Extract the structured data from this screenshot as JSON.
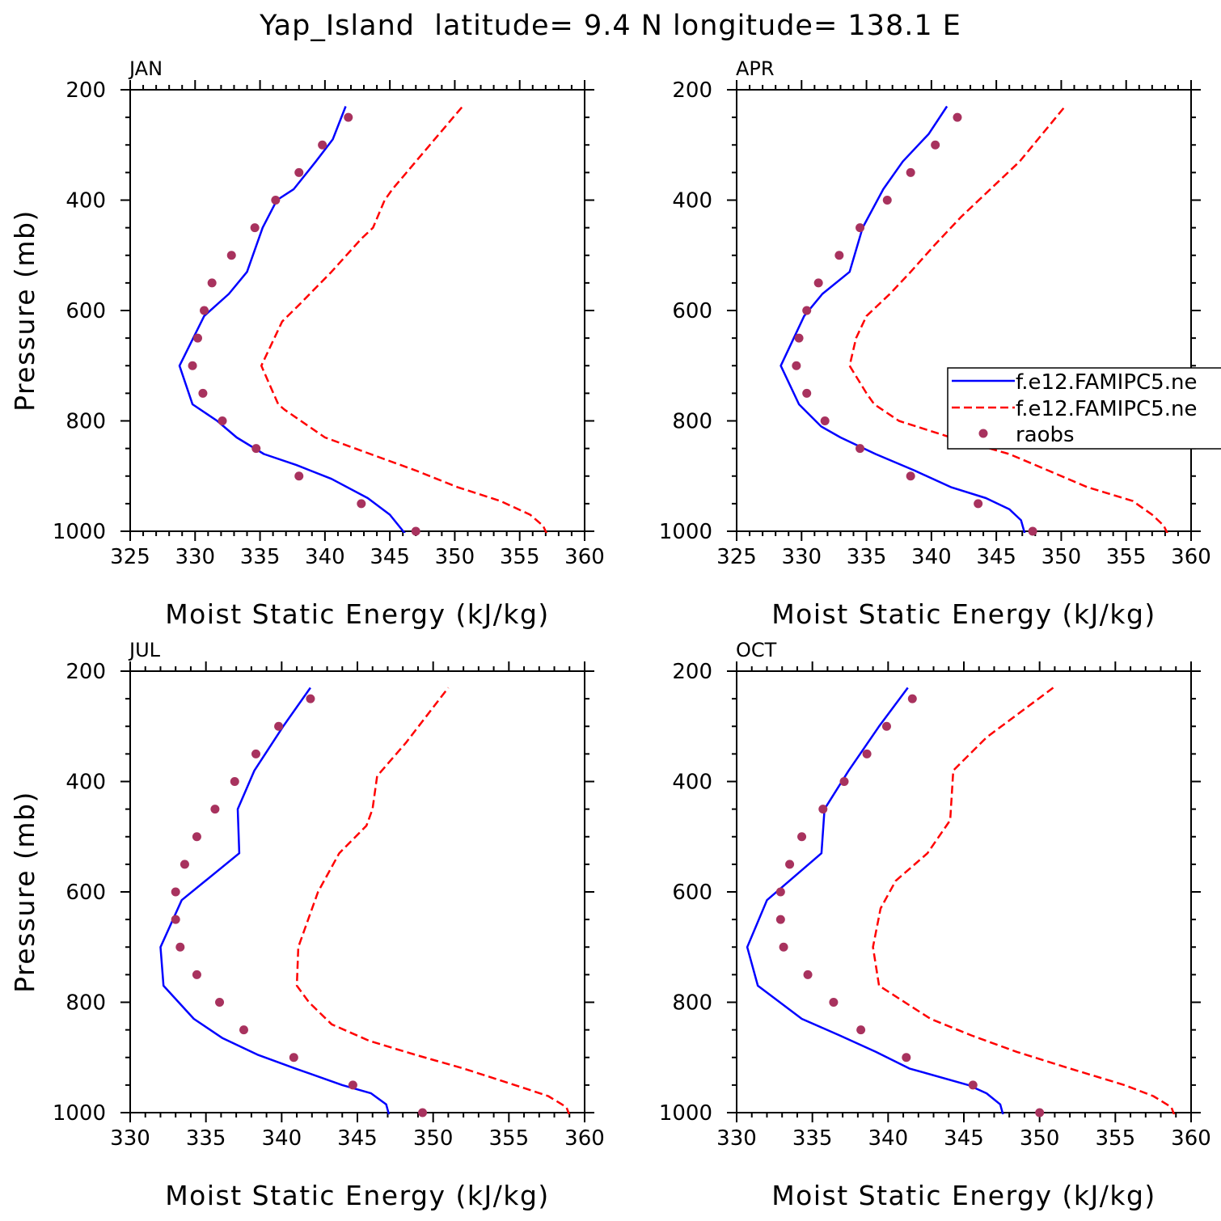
{
  "title": "Yap_Island  latitude= 9.4 N longitude= 138.1 E",
  "colors": {
    "series1": "#0000ff",
    "series2": "#ff0000",
    "series3": "#a8325e",
    "axis": "#000000"
  },
  "legend": {
    "entries": [
      "f.e12.FAMIPC5.ne",
      "f.e12.FAMIPC5.ne",
      "raobs"
    ],
    "panel": "APR",
    "placement": "right"
  },
  "chart_data": [
    {
      "type": "line",
      "panel_label": "JAN",
      "xlabel": "Moist Static Energy (kJ/kg)",
      "ylabel": "Pressure (mb)",
      "xlim": [
        325,
        360
      ],
      "xticks": [
        325,
        330,
        335,
        340,
        345,
        350,
        355,
        360
      ],
      "ylim": [
        1000,
        200
      ],
      "yticks": [
        200,
        400,
        600,
        800,
        1000
      ],
      "series": [
        {
          "name": "f.e12.FAMIPC5.ne",
          "style": "solid",
          "x": [
            346.2,
            345.0,
            343.3,
            340.5,
            337.8,
            335.3,
            333.2,
            331.7,
            329.8,
            328.8,
            330.7,
            332.6,
            334.0,
            335.2,
            336.3,
            337.6,
            339.3,
            340.6,
            341.6
          ],
          "y": [
            1005,
            970,
            940,
            905,
            880,
            860,
            830,
            800,
            770,
            700,
            610,
            570,
            530,
            450,
            400,
            380,
            330,
            290,
            230
          ]
        },
        {
          "name": "f.e12.FAMIPC5.ne",
          "style": "dashed",
          "x": [
            357.1,
            356.8,
            355.8,
            353.5,
            350.2,
            347.0,
            343.5,
            340.0,
            336.9,
            336.4,
            335.1,
            336.7,
            338.0,
            340.5,
            342.8,
            343.7,
            344.6,
            345.2,
            347.0,
            350.6
          ],
          "y": [
            1005,
            990,
            970,
            945,
            920,
            890,
            860,
            830,
            780,
            770,
            700,
            620,
            590,
            530,
            470,
            450,
            400,
            380,
            330,
            230
          ]
        },
        {
          "name": "raobs",
          "style": "points",
          "x": [
            347.0,
            342.8,
            338.0,
            334.7,
            332.1,
            330.6,
            329.8,
            330.2,
            330.7,
            331.3,
            332.8,
            334.6,
            336.2,
            338.0,
            339.8,
            341.8
          ],
          "y": [
            1000,
            950,
            900,
            850,
            800,
            750,
            700,
            650,
            600,
            550,
            500,
            450,
            400,
            350,
            300,
            250
          ]
        }
      ]
    },
    {
      "type": "line",
      "panel_label": "APR",
      "xlabel": "Moist Static Energy (kJ/kg)",
      "ylabel": "",
      "xlim": [
        325,
        360
      ],
      "xticks": [
        325,
        330,
        335,
        340,
        345,
        350,
        355,
        360
      ],
      "ylim": [
        1000,
        200
      ],
      "yticks": [
        200,
        400,
        600,
        800,
        1000
      ],
      "series": [
        {
          "name": "f.e12.FAMIPC5.ne",
          "style": "solid",
          "x": [
            347.2,
            346.9,
            346.0,
            344.2,
            341.5,
            338.7,
            335.7,
            333.0,
            331.5,
            329.8,
            328.4,
            330.2,
            331.6,
            333.7,
            334.7,
            336.3,
            337.8,
            339.8,
            341.2
          ],
          "y": [
            1005,
            980,
            960,
            940,
            920,
            890,
            860,
            830,
            810,
            770,
            700,
            610,
            570,
            530,
            450,
            380,
            330,
            280,
            230
          ]
        },
        {
          "name": "f.e12.FAMIPC5.ne",
          "style": "dashed",
          "x": [
            358.2,
            357.9,
            357.0,
            355.5,
            352.0,
            349.0,
            346.0,
            341.5,
            337.5,
            335.6,
            335.0,
            333.7,
            334.2,
            335.0,
            336.8,
            338.4,
            340.3,
            342.3,
            346.8,
            350.3
          ],
          "y": [
            1005,
            990,
            970,
            945,
            920,
            890,
            860,
            830,
            800,
            770,
            750,
            700,
            650,
            610,
            570,
            530,
            480,
            430,
            330,
            230
          ]
        },
        {
          "name": "raobs",
          "style": "points",
          "x": [
            347.8,
            343.6,
            338.4,
            334.5,
            331.8,
            330.4,
            329.6,
            329.8,
            330.4,
            331.3,
            332.9,
            334.5,
            336.6,
            338.4,
            340.3,
            342.0
          ],
          "y": [
            1000,
            950,
            900,
            850,
            800,
            750,
            700,
            650,
            600,
            550,
            500,
            450,
            400,
            350,
            300,
            250
          ]
        }
      ]
    },
    {
      "type": "line",
      "panel_label": "JUL",
      "xlabel": "Moist Static Energy (kJ/kg)",
      "ylabel": "Pressure (mb)",
      "xlim": [
        330,
        360
      ],
      "xticks": [
        330,
        335,
        340,
        345,
        350,
        355,
        360
      ],
      "ylim": [
        1000,
        200
      ],
      "yticks": [
        200,
        400,
        600,
        800,
        1000
      ],
      "series": [
        {
          "name": "f.e12.FAMIPC5.ne",
          "style": "solid",
          "x": [
            347.1,
            346.9,
            345.9,
            344.0,
            340.9,
            338.4,
            336.1,
            334.2,
            332.2,
            332.0,
            333.4,
            337.2,
            337.1,
            338.2,
            340.1,
            341.9
          ],
          "y": [
            1005,
            985,
            965,
            950,
            920,
            895,
            865,
            830,
            770,
            700,
            615,
            530,
            450,
            380,
            300,
            230
          ]
        },
        {
          "name": "f.e12.FAMIPC5.ne",
          "style": "dashed",
          "x": [
            359.0,
            358.8,
            357.6,
            355.4,
            352.0,
            348.8,
            345.8,
            343.3,
            341.8,
            341.0,
            341.1,
            342.4,
            343.8,
            345.6,
            346.0,
            346.3,
            348.2,
            351.0
          ],
          "y": [
            1005,
            990,
            970,
            950,
            920,
            895,
            870,
            840,
            800,
            770,
            700,
            600,
            530,
            480,
            450,
            390,
            330,
            230
          ]
        },
        {
          "name": "raobs",
          "style": "points",
          "x": [
            349.3,
            344.7,
            340.8,
            337.5,
            335.9,
            334.4,
            333.3,
            333.0,
            333.0,
            333.6,
            334.4,
            335.6,
            336.9,
            338.3,
            339.8,
            341.9
          ],
          "y": [
            1000,
            950,
            900,
            850,
            800,
            750,
            700,
            650,
            600,
            550,
            500,
            450,
            400,
            350,
            300,
            250
          ]
        }
      ]
    },
    {
      "type": "line",
      "panel_label": "OCT",
      "xlabel": "Moist Static Energy (kJ/kg)",
      "ylabel": "",
      "xlim": [
        330,
        360
      ],
      "xticks": [
        330,
        335,
        340,
        345,
        350,
        355,
        360
      ],
      "ylim": [
        1000,
        200
      ],
      "yticks": [
        200,
        400,
        600,
        800,
        1000
      ],
      "series": [
        {
          "name": "f.e12.FAMIPC5.ne",
          "style": "solid",
          "x": [
            347.6,
            347.4,
            346.5,
            345.3,
            341.4,
            339.2,
            336.8,
            334.3,
            331.4,
            330.7,
            332.0,
            335.6,
            335.8,
            337.4,
            339.4,
            341.3
          ],
          "y": [
            1005,
            985,
            965,
            950,
            920,
            890,
            860,
            830,
            770,
            700,
            615,
            530,
            450,
            380,
            300,
            230
          ]
        },
        {
          "name": "f.e12.FAMIPC5.ne",
          "style": "dashed",
          "x": [
            358.9,
            358.7,
            357.5,
            355.6,
            352.0,
            348.5,
            345.5,
            342.8,
            339.4,
            339.0,
            339.5,
            340.5,
            342.6,
            344.1,
            344.3,
            346.5,
            350.9
          ],
          "y": [
            1005,
            990,
            970,
            950,
            920,
            890,
            860,
            830,
            770,
            700,
            630,
            580,
            530,
            470,
            380,
            320,
            230
          ]
        },
        {
          "name": "raobs",
          "style": "points",
          "x": [
            350.0,
            345.6,
            341.2,
            338.2,
            336.4,
            334.7,
            333.1,
            332.9,
            332.9,
            333.5,
            334.3,
            335.7,
            337.1,
            338.6,
            339.9,
            341.6
          ],
          "y": [
            1000,
            950,
            900,
            850,
            800,
            750,
            700,
            650,
            600,
            550,
            500,
            450,
            400,
            350,
            300,
            250
          ]
        }
      ]
    }
  ]
}
